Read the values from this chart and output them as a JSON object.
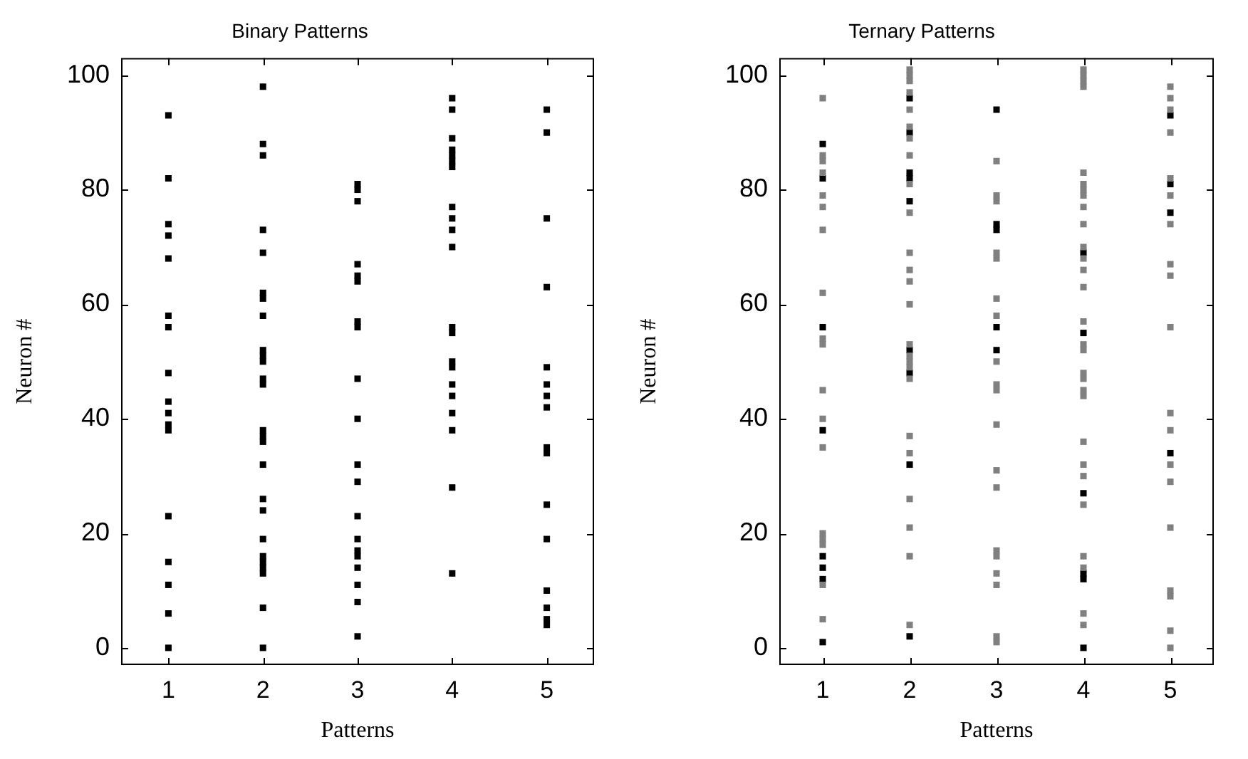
{
  "chart_data": [
    {
      "type": "scatter",
      "title": "Binary Patterns",
      "xlabel": "Patterns",
      "ylabel": "Neuron #",
      "xlim": [
        0.5,
        5.5
      ],
      "xticks": [
        1,
        2,
        3,
        4,
        5
      ],
      "ylim": [
        -3,
        103
      ],
      "yticks": [
        0,
        20,
        40,
        60,
        80,
        100
      ],
      "grid": false,
      "legend": false,
      "marker": "square",
      "series": [
        {
          "color": "#000000",
          "x": [
            1,
            1,
            1,
            1,
            1,
            1,
            1,
            1,
            1,
            1,
            1,
            1,
            1,
            1,
            1,
            1,
            1,
            2,
            2,
            2,
            2,
            2,
            2,
            2,
            2,
            2,
            2,
            2,
            2,
            2,
            2,
            2,
            2,
            2,
            2,
            2,
            2,
            2,
            2,
            2,
            2,
            2,
            2,
            3,
            3,
            3,
            3,
            3,
            3,
            3,
            3,
            3,
            3,
            3,
            3,
            3,
            3,
            3,
            3,
            3,
            3,
            3,
            3,
            4,
            4,
            4,
            4,
            4,
            4,
            4,
            4,
            4,
            4,
            4,
            4,
            4,
            4,
            4,
            4,
            4,
            4,
            4,
            4,
            4,
            5,
            5,
            5,
            5,
            5,
            5,
            5,
            5,
            5,
            5,
            5,
            5,
            5,
            5,
            5,
            5
          ],
          "values": [
            0,
            6,
            11,
            15,
            23,
            38,
            39,
            41,
            43,
            48,
            56,
            58,
            68,
            72,
            74,
            82,
            93,
            0,
            7,
            13,
            14,
            15,
            16,
            19,
            24,
            26,
            32,
            36,
            37,
            38,
            46,
            47,
            50,
            51,
            52,
            58,
            61,
            62,
            69,
            73,
            86,
            88,
            98,
            2,
            8,
            11,
            14,
            16,
            17,
            19,
            23,
            29,
            32,
            40,
            47,
            56,
            57,
            64,
            65,
            67,
            78,
            80,
            81,
            13,
            28,
            38,
            41,
            44,
            46,
            49,
            50,
            55,
            56,
            70,
            73,
            75,
            77,
            84,
            85,
            86,
            87,
            89,
            94,
            96,
            4,
            5,
            7,
            10,
            19,
            25,
            34,
            35,
            42,
            44,
            46,
            49,
            63,
            75,
            90,
            94
          ]
        }
      ]
    },
    {
      "type": "scatter",
      "title": "Ternary Patterns",
      "xlabel": "Patterns",
      "ylabel": "Neuron #",
      "xlim": [
        0.5,
        5.5
      ],
      "xticks": [
        1,
        2,
        3,
        4,
        5
      ],
      "ylim": [
        -3,
        103
      ],
      "yticks": [
        0,
        20,
        40,
        60,
        80,
        100
      ],
      "grid": false,
      "legend": false,
      "marker": "square",
      "series": [
        {
          "color": "#808080",
          "x": [
            1,
            1,
            1,
            1,
            1,
            1,
            1,
            1,
            1,
            1,
            1,
            1,
            1,
            1,
            1,
            1,
            1,
            1,
            2,
            2,
            2,
            2,
            2,
            2,
            2,
            2,
            2,
            2,
            2,
            2,
            2,
            2,
            2,
            2,
            2,
            2,
            2,
            2,
            2,
            2,
            2,
            2,
            2,
            3,
            3,
            3,
            3,
            3,
            3,
            3,
            3,
            3,
            3,
            3,
            3,
            3,
            3,
            3,
            3,
            3,
            3,
            3,
            4,
            4,
            4,
            4,
            4,
            4,
            4,
            4,
            4,
            4,
            4,
            4,
            4,
            4,
            4,
            4,
            4,
            4,
            4,
            4,
            4,
            4,
            4,
            4,
            4,
            4,
            4,
            4,
            4,
            5,
            5,
            5,
            5,
            5,
            5,
            5,
            5,
            5,
            5,
            5,
            5,
            5,
            5,
            5,
            5,
            5,
            5,
            5
          ],
          "values": [
            5,
            11,
            18,
            19,
            20,
            35,
            40,
            45,
            53,
            54,
            62,
            73,
            77,
            79,
            83,
            85,
            86,
            96,
            4,
            16,
            21,
            26,
            34,
            37,
            47,
            49,
            50,
            51,
            53,
            60,
            64,
            66,
            69,
            76,
            81,
            86,
            89,
            91,
            94,
            97,
            99,
            100,
            101,
            1,
            2,
            11,
            13,
            16,
            17,
            28,
            31,
            39,
            45,
            46,
            50,
            58,
            61,
            68,
            69,
            78,
            79,
            85,
            4,
            6,
            14,
            16,
            25,
            30,
            32,
            36,
            44,
            45,
            47,
            48,
            52,
            53,
            57,
            63,
            66,
            68,
            70,
            74,
            77,
            79,
            80,
            81,
            83,
            98,
            99,
            100,
            101,
            0,
            3,
            9,
            10,
            21,
            29,
            32,
            38,
            41,
            56,
            65,
            67,
            74,
            79,
            82,
            90,
            94,
            96,
            98
          ]
        },
        {
          "color": "#000000",
          "x": [
            1,
            1,
            1,
            1,
            1,
            1,
            1,
            1,
            2,
            2,
            2,
            2,
            2,
            2,
            2,
            2,
            2,
            3,
            3,
            3,
            3,
            3,
            4,
            4,
            4,
            4,
            4,
            4,
            5,
            5,
            5,
            5
          ],
          "values": [
            1,
            12,
            14,
            16,
            38,
            56,
            82,
            88,
            2,
            32,
            48,
            52,
            78,
            82,
            83,
            90,
            96,
            52,
            56,
            73,
            74,
            94,
            0,
            12,
            13,
            27,
            55,
            69,
            34,
            76,
            81,
            93
          ]
        }
      ]
    }
  ]
}
